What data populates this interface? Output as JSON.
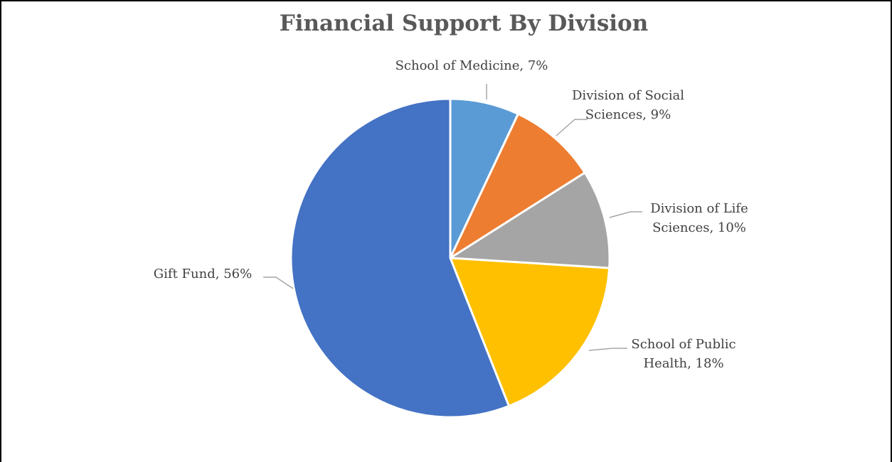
{
  "chart_data": {
    "type": "pie",
    "title": "Financial Support By Division",
    "start_angle_deg": 0,
    "direction": "clockwise",
    "slices": [
      {
        "label_lines": [
          "School of Medicine, 7%"
        ],
        "value": 7,
        "color": "#5B9BD5"
      },
      {
        "label_lines": [
          "Division of Social",
          "Sciences, 9%"
        ],
        "value": 9,
        "color": "#ED7D31"
      },
      {
        "label_lines": [
          "Division of Life",
          "Sciences, 10%"
        ],
        "value": 10,
        "color": "#A5A5A5"
      },
      {
        "label_lines": [
          "School of Public",
          "Health, 18%"
        ],
        "value": 18,
        "color": "#FFC000"
      },
      {
        "label_lines": [
          "Gift Fund, 56%"
        ],
        "value": 56,
        "color": "#4472C4"
      }
    ],
    "title_color": "#595959",
    "label_color": "#404040",
    "leader_color": "#A6A6A6",
    "border_color": "#000000"
  }
}
